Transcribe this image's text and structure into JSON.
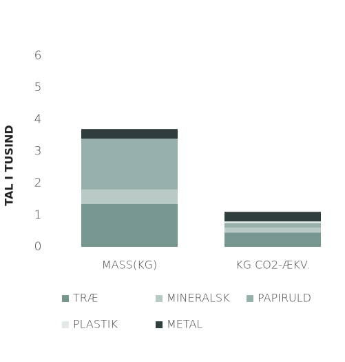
{
  "chart_data": {
    "type": "stacked_bar",
    "y_label": "TAL I TUSIND",
    "categories": [
      "MASS(KG)",
      "KG CO2-ÆKV."
    ],
    "series": [
      {
        "name": "TRÆ",
        "color": "#76968f",
        "values": [
          1.35,
          0.45
        ]
      },
      {
        "name": "MINERALSK",
        "color": "#b8c9c6",
        "values": [
          0.45,
          0.15
        ]
      },
      {
        "name": "PAPIRULD",
        "color": "#97b0ac",
        "values": [
          1.6,
          0.15
        ]
      },
      {
        "name": "PLASTIK",
        "color": "#e3e9e8",
        "values": [
          0,
          0.05
        ]
      },
      {
        "name": "METAL",
        "color": "#2f3d3d",
        "values": [
          0.3,
          0.3
        ]
      }
    ],
    "ylim": [
      0,
      6
    ],
    "yticks": [
      0,
      1,
      2,
      3,
      4,
      5,
      6
    ]
  }
}
